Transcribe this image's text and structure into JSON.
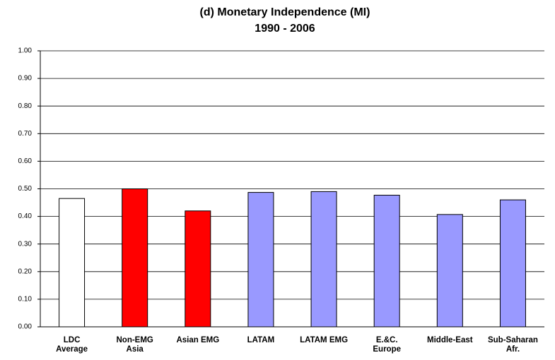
{
  "chart_data": {
    "type": "bar",
    "title": "(d) Monetary Independence (MI)",
    "subtitle": "1990 - 2006",
    "categories": [
      "LDC\nAverage",
      "Non-EMG\nAsia",
      "Asian EMG",
      "LATAM",
      "LATAM EMG",
      "E.&C.\nEurope",
      "Middle-East",
      "Sub-Saharan\nAfr."
    ],
    "values": [
      0.465,
      0.5,
      0.42,
      0.487,
      0.49,
      0.477,
      0.407,
      0.46
    ],
    "colors": [
      "#ffffff",
      "#ff0000",
      "#ff0000",
      "#9999ff",
      "#9999ff",
      "#9999ff",
      "#9999ff",
      "#9999ff"
    ],
    "ylim": [
      0,
      1
    ],
    "yticks": [
      {
        "value": 0,
        "label": "0.00"
      },
      {
        "value": 0.1,
        "label": "0.10"
      },
      {
        "value": 0.2,
        "label": "0.20"
      },
      {
        "value": 0.3,
        "label": "0.30"
      },
      {
        "value": 0.4,
        "label": "0.40"
      },
      {
        "value": 0.5,
        "label": "0.50"
      },
      {
        "value": 0.6,
        "label": "0.60"
      },
      {
        "value": 0.7,
        "label": "0.70"
      },
      {
        "value": 0.8,
        "label": "0.80"
      },
      {
        "value": 0.9,
        "label": "0.90"
      },
      {
        "value": 1,
        "label": "1.00"
      }
    ],
    "grid": true
  }
}
